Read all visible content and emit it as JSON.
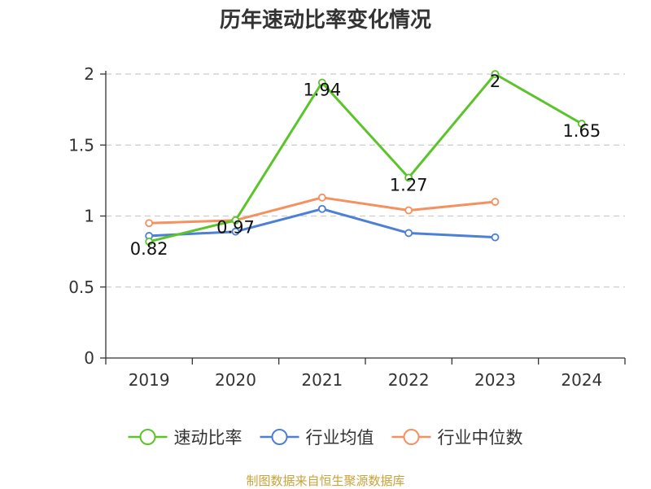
{
  "colors": {
    "background": "#ffffff",
    "axis": "#333333",
    "grid": "#cccccc"
  },
  "chart_data": {
    "type": "line",
    "title": "历年速动比率变化情况",
    "categories": [
      "2019",
      "2020",
      "2021",
      "2022",
      "2023",
      "2024"
    ],
    "ylim": [
      0,
      2
    ],
    "yticks": [
      0,
      0.5,
      1,
      1.5,
      2
    ],
    "ytick_labels": [
      "0",
      "0.5",
      "1",
      "1.5",
      "2"
    ],
    "grid": "horizontal-dashed",
    "legend_position": "bottom",
    "series": [
      {
        "name": "速动比率",
        "color": "#5cc42b",
        "values": [
          0.82,
          0.97,
          1.94,
          1.27,
          2,
          1.65
        ],
        "labels": [
          "0.82",
          "0.97",
          "1.94",
          "1.27",
          "2",
          "1.65"
        ]
      },
      {
        "name": "行业均值",
        "color": "#4d7fd6",
        "values": [
          0.86,
          0.89,
          1.05,
          0.88,
          0.85,
          null
        ]
      },
      {
        "name": "行业中位数",
        "color": "#f5905f",
        "values": [
          0.95,
          0.97,
          1.13,
          1.04,
          1.1,
          null
        ]
      }
    ]
  },
  "footer": {
    "source": "制图数据来自恒生聚源数据库"
  }
}
